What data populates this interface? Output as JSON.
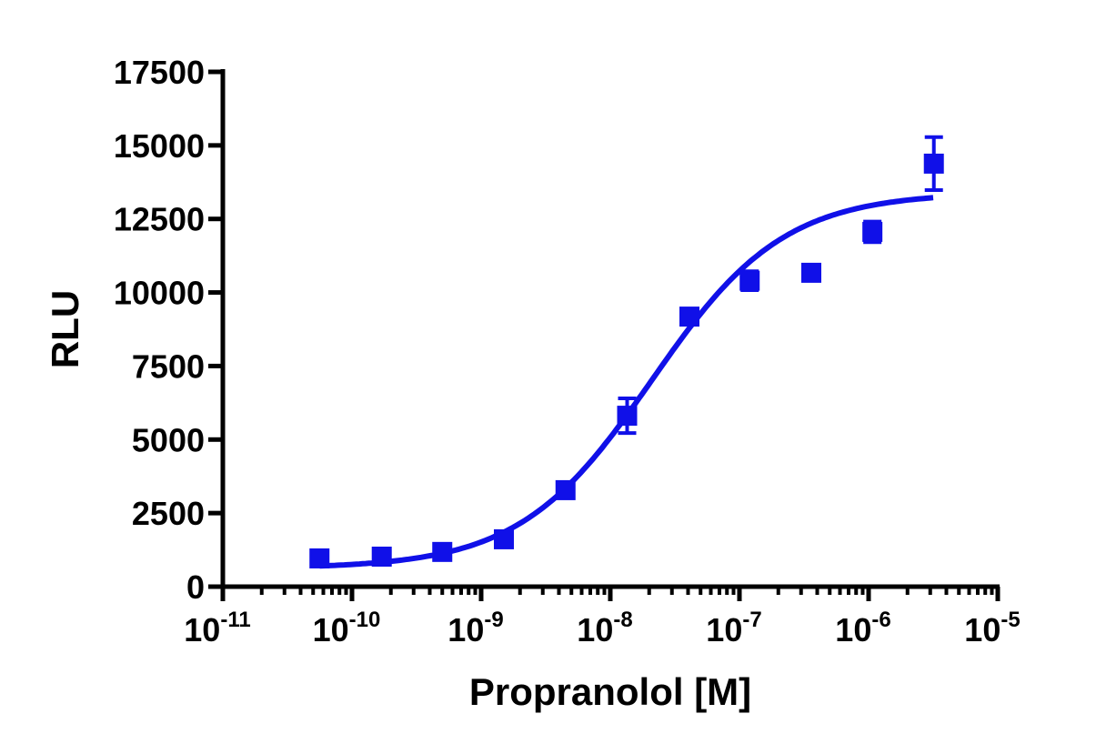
{
  "chart_data": {
    "type": "scatter",
    "title": "",
    "xlabel": "Propranolol [M]",
    "ylabel": "RLU",
    "xscale": "log",
    "xlim_log10": [
      -11,
      -5
    ],
    "ylim": [
      0,
      17500
    ],
    "x_tick_exponents": [
      "-11",
      "-10",
      "-9",
      "-8",
      "-7",
      "-6",
      "-5"
    ],
    "x_tick_base": "10",
    "y_ticks": [
      0,
      2500,
      5000,
      7500,
      10000,
      12500,
      15000,
      17500
    ],
    "y_tick_labels": [
      "0",
      "2500",
      "5000",
      "7500",
      "10000",
      "12500",
      "15000",
      "17500"
    ],
    "series": [
      {
        "name": "Propranolol",
        "color": "#1010e8",
        "marker": "square",
        "x": [
          5.6e-11,
          1.7e-10,
          5e-10,
          1.5e-09,
          4.5e-09,
          1.35e-08,
          4.1e-08,
          1.2e-07,
          3.6e-07,
          1.07e-06,
          3.2e-06
        ],
        "y": [
          960,
          1020,
          1180,
          1610,
          3280,
          5810,
          9180,
          10400,
          10670,
          12060,
          14380
        ],
        "yerr": [
          120,
          100,
          120,
          150,
          170,
          590,
          150,
          320,
          100,
          350,
          900
        ]
      }
    ],
    "fit": {
      "model": "sigmoidal dose-response",
      "bottom": 620,
      "top": 13400,
      "log_ec50": -7.68,
      "hill": 0.85,
      "x_range_log10": [
        -10.25,
        -5.5
      ]
    },
    "grid": false,
    "legend": "none"
  }
}
